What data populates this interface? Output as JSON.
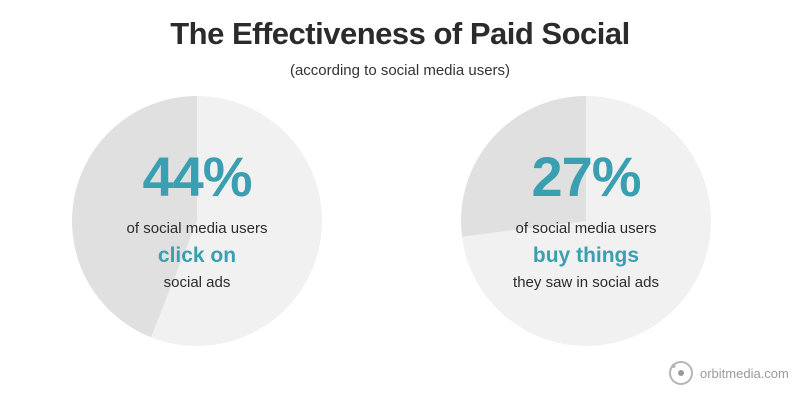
{
  "header": {
    "title": "The Effectiveness of Paid Social",
    "subtitle": "(according to social media users)"
  },
  "colors": {
    "accent": "#3a9fb0",
    "slice_highlight": "#e0e0e0",
    "slice_rest": "#f1f1f1",
    "text_dark": "#2b2b2b"
  },
  "chart_data": [
    {
      "type": "pie",
      "values": [
        44,
        56
      ],
      "value_label": "44%",
      "line1": "of social media users",
      "line2": "click on",
      "line3": "social ads"
    },
    {
      "type": "pie",
      "values": [
        27,
        73
      ],
      "value_label": "27%",
      "line1": "of social media users",
      "line2": "buy things",
      "line3": "they saw in social ads"
    }
  ],
  "brand": {
    "icon": "orbit-logo-icon",
    "text": "orbitmedia.com"
  }
}
